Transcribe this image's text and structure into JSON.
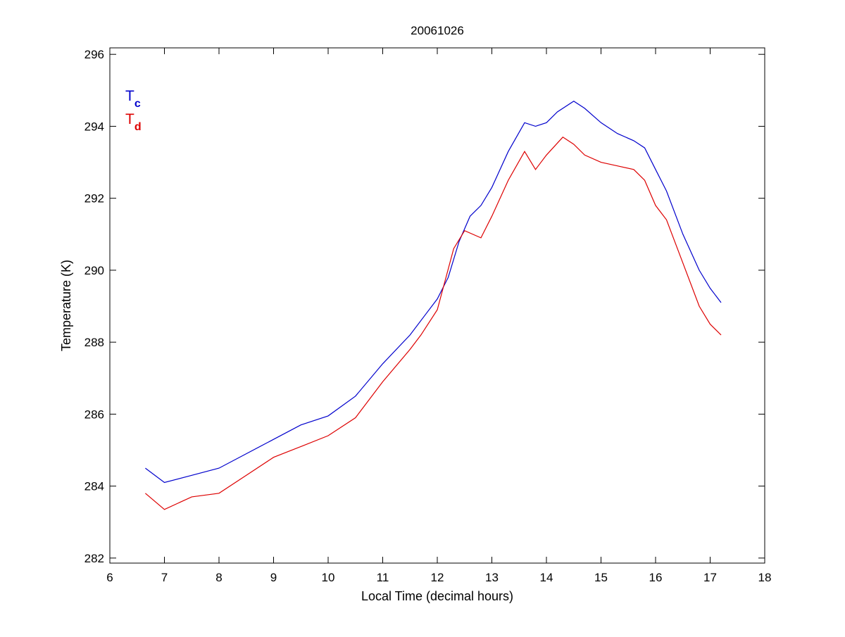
{
  "chart_data": {
    "type": "line",
    "title": "20061026",
    "xlabel": "Local Time (decimal hours)",
    "ylabel": "Temperature (K)",
    "xlim": [
      6,
      18
    ],
    "ylim": [
      281.86,
      296.18
    ],
    "xticks": [
      6,
      7,
      8,
      9,
      10,
      11,
      12,
      13,
      14,
      15,
      16,
      17,
      18
    ],
    "yticks": [
      282,
      284,
      286,
      288,
      290,
      292,
      294,
      296
    ],
    "grid": false,
    "legend_placement": "top-left",
    "series": [
      {
        "name": "T",
        "subscript": "c",
        "color": "#0000cc",
        "x": [
          6.65,
          7.0,
          7.5,
          8.0,
          8.5,
          9.0,
          9.5,
          10.0,
          10.5,
          11.0,
          11.5,
          11.8,
          12.0,
          12.2,
          12.4,
          12.6,
          12.8,
          13.0,
          13.3,
          13.6,
          13.8,
          14.0,
          14.2,
          14.5,
          14.7,
          15.0,
          15.3,
          15.6,
          15.8,
          16.0,
          16.2,
          16.5,
          16.8,
          17.0,
          17.2
        ],
        "y": [
          284.5,
          284.1,
          284.3,
          284.5,
          284.9,
          285.3,
          285.7,
          285.95,
          286.5,
          287.4,
          288.2,
          288.8,
          289.2,
          289.8,
          290.8,
          291.5,
          291.8,
          292.3,
          293.3,
          294.1,
          294.0,
          294.1,
          294.4,
          294.7,
          294.5,
          294.1,
          293.8,
          293.6,
          293.4,
          292.8,
          292.2,
          291.0,
          290.0,
          289.5,
          289.1
        ]
      },
      {
        "name": "T",
        "subscript": "d",
        "color": "#dd0000",
        "x": [
          6.65,
          7.0,
          7.5,
          8.0,
          8.5,
          9.0,
          9.5,
          10.0,
          10.5,
          11.0,
          11.5,
          11.7,
          12.0,
          12.3,
          12.5,
          12.8,
          13.0,
          13.3,
          13.6,
          13.8,
          14.0,
          14.3,
          14.5,
          14.7,
          15.0,
          15.3,
          15.6,
          15.8,
          16.0,
          16.2,
          16.5,
          16.8,
          17.0,
          17.2
        ],
        "y": [
          283.8,
          283.35,
          283.7,
          283.8,
          284.3,
          284.8,
          285.1,
          285.4,
          285.9,
          286.9,
          287.8,
          288.2,
          288.9,
          290.6,
          291.1,
          290.9,
          291.5,
          292.5,
          293.3,
          292.8,
          293.2,
          293.7,
          293.5,
          293.2,
          293.0,
          292.9,
          292.8,
          292.5,
          291.8,
          291.4,
          290.2,
          289.0,
          288.5,
          288.2
        ]
      }
    ]
  }
}
